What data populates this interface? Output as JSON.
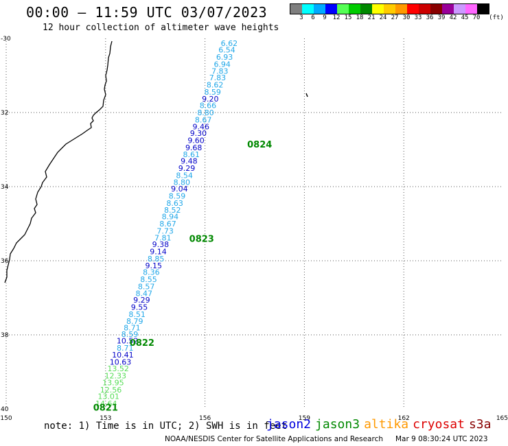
{
  "header": {
    "title": "00:00 – 11:59 UTC 03/07/2023",
    "subtitle": "12 hour collection of altimeter wave heights"
  },
  "colorbar": {
    "colors": [
      "#7f7f7f",
      "#00ffff",
      "#00aaff",
      "#0000ff",
      "#55ff55",
      "#00cc00",
      "#008800",
      "#ffff00",
      "#ffcc00",
      "#ff9900",
      "#ff0000",
      "#cc0000",
      "#880000",
      "#990099",
      "#cc99ff",
      "#ff66ff",
      "#000000"
    ],
    "labels": [
      "3",
      "6",
      "9",
      "12",
      "15",
      "18",
      "21",
      "24",
      "27",
      "30",
      "33",
      "36",
      "39",
      "42",
      "45",
      "70"
    ],
    "unit": "(ft)"
  },
  "map": {
    "lon_range": [
      150,
      165
    ],
    "lat_range": [
      -40,
      -30
    ],
    "lon_ticks": [
      "150",
      "153",
      "156",
      "159",
      "162",
      "165"
    ],
    "lat_ticks": [
      "-30",
      "32",
      "34",
      "36",
      "38",
      "40"
    ],
    "color_levels": {
      "cyan": "#21a7e8",
      "blue": "#0000c8",
      "lightgreen": "#55dd55",
      "green": "#008800"
    },
    "swh_labels": [
      {
        "v": "6.62",
        "lon": 156.73,
        "lat": -30.13,
        "c": "cyan"
      },
      {
        "v": "6.54",
        "lon": 156.66,
        "lat": -30.31,
        "c": "cyan"
      },
      {
        "v": "6.93",
        "lon": 156.59,
        "lat": -30.5,
        "c": "cyan"
      },
      {
        "v": "6.94",
        "lon": 156.52,
        "lat": -30.69,
        "c": "cyan"
      },
      {
        "v": "7.83",
        "lon": 156.45,
        "lat": -30.88,
        "c": "cyan"
      },
      {
        "v": "7.83",
        "lon": 156.38,
        "lat": -31.06,
        "c": "cyan"
      },
      {
        "v": "8.62",
        "lon": 156.3,
        "lat": -31.25,
        "c": "cyan"
      },
      {
        "v": "8.59",
        "lon": 156.23,
        "lat": -31.44,
        "c": "cyan"
      },
      {
        "v": "9.20",
        "lon": 156.16,
        "lat": -31.63,
        "c": "blue"
      },
      {
        "v": "8.66",
        "lon": 156.09,
        "lat": -31.81,
        "c": "cyan"
      },
      {
        "v": "8.80",
        "lon": 156.02,
        "lat": -32.0,
        "c": "cyan"
      },
      {
        "v": "8.67",
        "lon": 155.95,
        "lat": -32.19,
        "c": "cyan"
      },
      {
        "v": "9.46",
        "lon": 155.88,
        "lat": -32.38,
        "c": "blue"
      },
      {
        "v": "9.30",
        "lon": 155.8,
        "lat": -32.56,
        "c": "blue"
      },
      {
        "v": "9.60",
        "lon": 155.73,
        "lat": -32.75,
        "c": "blue"
      },
      {
        "v": "9.68",
        "lon": 155.66,
        "lat": -32.94,
        "c": "blue"
      },
      {
        "v": "8.61",
        "lon": 155.59,
        "lat": -33.13,
        "c": "cyan"
      },
      {
        "v": "9.48",
        "lon": 155.52,
        "lat": -33.31,
        "c": "blue"
      },
      {
        "v": "9.29",
        "lon": 155.45,
        "lat": -33.5,
        "c": "blue"
      },
      {
        "v": "8.54",
        "lon": 155.38,
        "lat": -33.69,
        "c": "cyan"
      },
      {
        "v": "8.80",
        "lon": 155.3,
        "lat": -33.88,
        "c": "cyan"
      },
      {
        "v": "9.04",
        "lon": 155.23,
        "lat": -34.06,
        "c": "blue"
      },
      {
        "v": "8.59",
        "lon": 155.16,
        "lat": -34.25,
        "c": "cyan"
      },
      {
        "v": "8.63",
        "lon": 155.09,
        "lat": -34.44,
        "c": "cyan"
      },
      {
        "v": "8.52",
        "lon": 155.02,
        "lat": -34.63,
        "c": "cyan"
      },
      {
        "v": "8.94",
        "lon": 154.95,
        "lat": -34.81,
        "c": "cyan"
      },
      {
        "v": "8.67",
        "lon": 154.88,
        "lat": -35.0,
        "c": "cyan"
      },
      {
        "v": "7.73",
        "lon": 154.8,
        "lat": -35.19,
        "c": "cyan"
      },
      {
        "v": "7.81",
        "lon": 154.73,
        "lat": -35.38,
        "c": "cyan"
      },
      {
        "v": "9.38",
        "lon": 154.66,
        "lat": -35.56,
        "c": "blue"
      },
      {
        "v": "9.14",
        "lon": 154.59,
        "lat": -35.75,
        "c": "blue"
      },
      {
        "v": "8.85",
        "lon": 154.52,
        "lat": -35.94,
        "c": "cyan"
      },
      {
        "v": "9.15",
        "lon": 154.45,
        "lat": -36.13,
        "c": "blue"
      },
      {
        "v": "8.36",
        "lon": 154.38,
        "lat": -36.31,
        "c": "cyan"
      },
      {
        "v": "8.55",
        "lon": 154.3,
        "lat": -36.5,
        "c": "cyan"
      },
      {
        "v": "8.57",
        "lon": 154.23,
        "lat": -36.69,
        "c": "cyan"
      },
      {
        "v": "8.47",
        "lon": 154.16,
        "lat": -36.88,
        "c": "cyan"
      },
      {
        "v": "9.29",
        "lon": 154.09,
        "lat": -37.06,
        "c": "blue"
      },
      {
        "v": "9.55",
        "lon": 154.02,
        "lat": -37.25,
        "c": "blue"
      },
      {
        "v": "8.51",
        "lon": 153.95,
        "lat": -37.44,
        "c": "cyan"
      },
      {
        "v": "8.79",
        "lon": 153.88,
        "lat": -37.63,
        "c": "cyan"
      },
      {
        "v": "8.71",
        "lon": 153.8,
        "lat": -37.81,
        "c": "cyan"
      },
      {
        "v": "8.59",
        "lon": 153.73,
        "lat": -37.98,
        "c": "cyan"
      },
      {
        "v": "10.52",
        "lon": 153.66,
        "lat": -38.16,
        "c": "blue"
      },
      {
        "v": "8.71",
        "lon": 153.59,
        "lat": -38.35,
        "c": "cyan"
      },
      {
        "v": "10.41",
        "lon": 153.52,
        "lat": -38.54,
        "c": "blue"
      },
      {
        "v": "10.63",
        "lon": 153.45,
        "lat": -38.73,
        "c": "blue"
      },
      {
        "v": "13.52",
        "lon": 153.38,
        "lat": -38.91,
        "c": "lightgreen"
      },
      {
        "v": "12.33",
        "lon": 153.3,
        "lat": -39.1,
        "c": "lightgreen"
      },
      {
        "v": "13.95",
        "lon": 153.23,
        "lat": -39.29,
        "c": "lightgreen"
      },
      {
        "v": "12.56",
        "lon": 153.16,
        "lat": -39.48,
        "c": "lightgreen"
      },
      {
        "v": "13.01",
        "lon": 153.09,
        "lat": -39.66,
        "c": "lightgreen"
      },
      {
        "v": "14.64",
        "lon": 153.02,
        "lat": -39.85,
        "c": "lightgreen"
      }
    ],
    "time_labels": [
      {
        "t": "0824",
        "lon": 157.65,
        "lat": -32.85
      },
      {
        "t": "0823",
        "lon": 155.9,
        "lat": -35.4
      },
      {
        "t": "0822",
        "lon": 154.1,
        "lat": -38.2
      },
      {
        "t": "0821",
        "lon": 153.0,
        "lat": -39.95
      }
    ]
  },
  "footer": {
    "note": "note: 1) Time is in UTC; 2) SWH is in feet",
    "satellites": [
      {
        "name": "jason2",
        "color": "#0000dd"
      },
      {
        "name": "jason3",
        "color": "#008800"
      },
      {
        "name": "altika",
        "color": "#ff9900"
      },
      {
        "name": "cryosat",
        "color": "#dd0000"
      },
      {
        "name": "s3a",
        "color": "#880000"
      }
    ],
    "credit": "NOAA/NESDIS Center for Satellite Applications and Research",
    "timestamp": "Mar  9 08:30:24 UTC 2023"
  }
}
